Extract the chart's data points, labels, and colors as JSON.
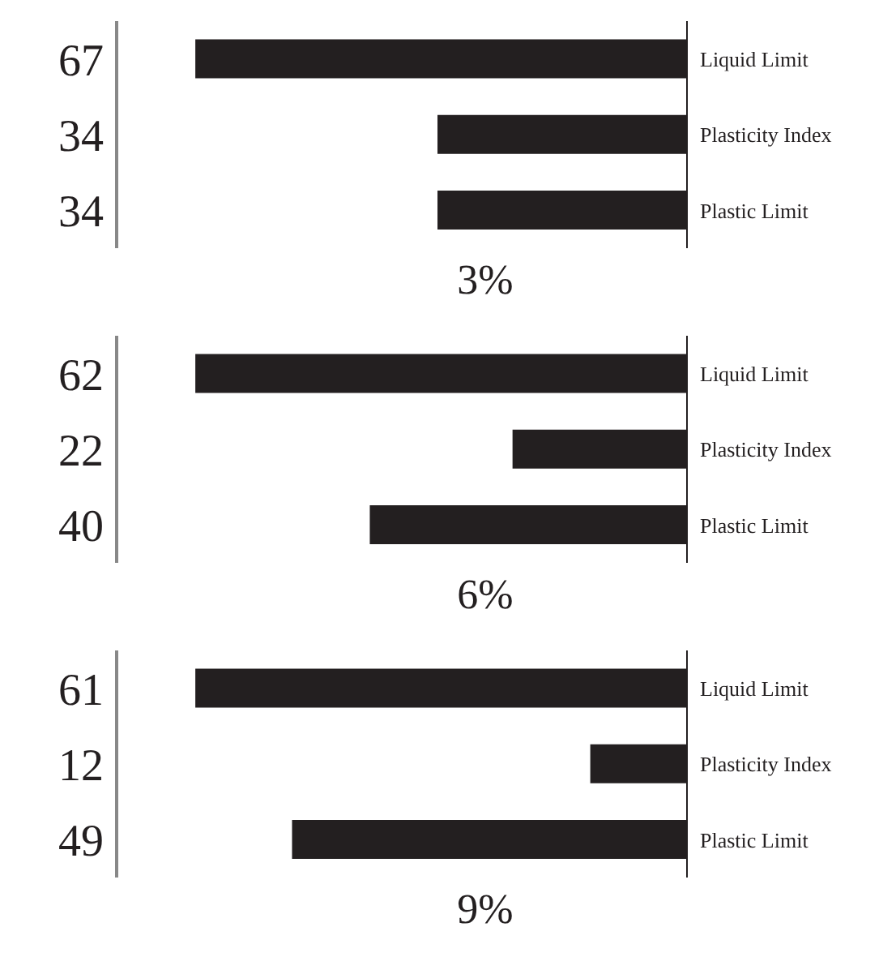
{
  "chart_data": [
    {
      "type": "bar",
      "orientation": "horizontal",
      "title": "3%",
      "categories": [
        "Liquid Limit",
        "Plasticity Index",
        "Plastic Limit"
      ],
      "values": [
        67,
        34,
        34
      ],
      "color": "#231f20",
      "data_labels": true
    },
    {
      "type": "bar",
      "orientation": "horizontal",
      "title": "6%",
      "categories": [
        "Liquid Limit",
        "Plasticity Index",
        "Plastic Limit"
      ],
      "values": [
        62,
        22,
        40
      ],
      "color": "#231f20",
      "data_labels": true
    },
    {
      "type": "bar",
      "orientation": "horizontal",
      "title": "9%",
      "categories": [
        "Liquid Limit",
        "Plasticity Index",
        "Plastic Limit"
      ],
      "values": [
        61,
        12,
        49
      ],
      "color": "#231f20",
      "data_labels": true
    }
  ]
}
